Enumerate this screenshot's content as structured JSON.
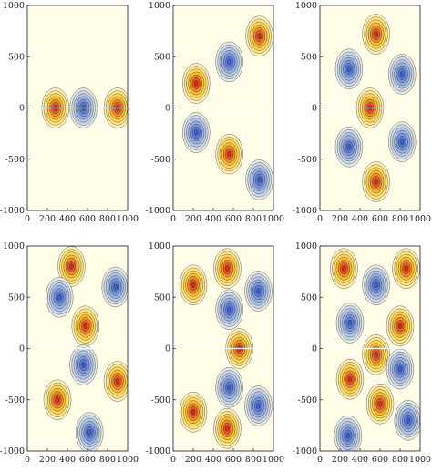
{
  "chart_data": [
    {
      "type": "contour",
      "xlim": [
        0,
        1000
      ],
      "ylim": [
        -1000,
        1000
      ],
      "x_ticks": [
        "0",
        "200",
        "400",
        "600",
        "800",
        "1000"
      ],
      "y_ticks": [
        "1000",
        "500",
        "0",
        "-500",
        "-1000"
      ],
      "colormap": [
        "#3a5ec8",
        "#a9bde6",
        "#fffde8",
        "#ffd23c",
        "#d42a1a"
      ],
      "extrema": [
        {
          "x": 280,
          "y": 0,
          "sign": 1
        },
        {
          "x": 560,
          "y": 0,
          "sign": -1
        },
        {
          "x": 900,
          "y": 0,
          "sign": 1
        }
      ]
    },
    {
      "type": "contour",
      "xlim": [
        0,
        1000
      ],
      "ylim": [
        -1000,
        1000
      ],
      "x_ticks": [
        "0",
        "200",
        "400",
        "600",
        "800",
        "1000"
      ],
      "y_ticks": [
        "1000",
        "500",
        "0",
        "-500",
        "-1000"
      ],
      "colormap": [
        "#3a5ec8",
        "#a9bde6",
        "#fffde8",
        "#ffd23c",
        "#d42a1a"
      ],
      "extrema": [
        {
          "x": 230,
          "y": 240,
          "sign": 1
        },
        {
          "x": 560,
          "y": 450,
          "sign": -1
        },
        {
          "x": 860,
          "y": 700,
          "sign": 1
        },
        {
          "x": 230,
          "y": -240,
          "sign": -1
        },
        {
          "x": 560,
          "y": -450,
          "sign": 1
        },
        {
          "x": 860,
          "y": -700,
          "sign": -1
        }
      ]
    },
    {
      "type": "contour",
      "xlim": [
        0,
        1000
      ],
      "ylim": [
        -1000,
        1000
      ],
      "x_ticks": [
        "0",
        "200",
        "400",
        "600",
        "800",
        "1000"
      ],
      "y_ticks": [
        "1000",
        "500",
        "0",
        "-500",
        "-1000"
      ],
      "colormap": [
        "#3a5ec8",
        "#a9bde6",
        "#fffde8",
        "#ffd23c",
        "#d42a1a"
      ],
      "extrema": [
        {
          "x": 290,
          "y": 380,
          "sign": -1
        },
        {
          "x": 560,
          "y": 720,
          "sign": 1
        },
        {
          "x": 500,
          "y": 0,
          "sign": 1
        },
        {
          "x": 820,
          "y": 330,
          "sign": -1
        },
        {
          "x": 290,
          "y": -380,
          "sign": -1
        },
        {
          "x": 560,
          "y": -720,
          "sign": 1
        },
        {
          "x": 820,
          "y": -330,
          "sign": -1
        }
      ]
    },
    {
      "type": "contour",
      "xlim": [
        0,
        1000
      ],
      "ylim": [
        -1000,
        1000
      ],
      "x_ticks": [
        "0",
        "200",
        "400",
        "600",
        "800",
        "1000"
      ],
      "y_ticks": [
        "1000",
        "500",
        "0",
        "-500",
        "-1000"
      ],
      "colormap": [
        "#3a5ec8",
        "#a9bde6",
        "#fffde8",
        "#ffd23c",
        "#d42a1a"
      ],
      "extrema": [
        {
          "x": 440,
          "y": 800,
          "sign": 1
        },
        {
          "x": 320,
          "y": 500,
          "sign": -1
        },
        {
          "x": 580,
          "y": 220,
          "sign": 1
        },
        {
          "x": 880,
          "y": 600,
          "sign": -1
        },
        {
          "x": 560,
          "y": -160,
          "sign": -1
        },
        {
          "x": 300,
          "y": -500,
          "sign": 1
        },
        {
          "x": 900,
          "y": -320,
          "sign": 1
        },
        {
          "x": 620,
          "y": -820,
          "sign": -1
        }
      ]
    },
    {
      "type": "contour",
      "xlim": [
        0,
        1000
      ],
      "ylim": [
        -1000,
        1000
      ],
      "x_ticks": [
        "0",
        "200",
        "400",
        "600",
        "800",
        "1000"
      ],
      "y_ticks": [
        "1000",
        "500",
        "0",
        "-500",
        "-1000"
      ],
      "colormap": [
        "#3a5ec8",
        "#a9bde6",
        "#fffde8",
        "#ffd23c",
        "#d42a1a"
      ],
      "extrema": [
        {
          "x": 200,
          "y": 620,
          "sign": 1
        },
        {
          "x": 540,
          "y": 780,
          "sign": 1
        },
        {
          "x": 560,
          "y": 380,
          "sign": -1
        },
        {
          "x": 850,
          "y": 560,
          "sign": -1
        },
        {
          "x": 660,
          "y": 0,
          "sign": 1
        },
        {
          "x": 560,
          "y": -380,
          "sign": -1
        },
        {
          "x": 200,
          "y": -620,
          "sign": 1
        },
        {
          "x": 540,
          "y": -780,
          "sign": 1
        },
        {
          "x": 850,
          "y": -560,
          "sign": -1
        }
      ]
    },
    {
      "type": "contour",
      "xlim": [
        0,
        1000
      ],
      "ylim": [
        -1000,
        1000
      ],
      "x_ticks": [
        "0",
        "200",
        "400",
        "600",
        "800",
        "1000"
      ],
      "y_ticks": [
        "1000",
        "500",
        "0",
        "-500",
        "-1000"
      ],
      "colormap": [
        "#3a5ec8",
        "#a9bde6",
        "#fffde8",
        "#ffd23c",
        "#d42a1a"
      ],
      "extrema": [
        {
          "x": 240,
          "y": 780,
          "sign": 1
        },
        {
          "x": 560,
          "y": 620,
          "sign": -1
        },
        {
          "x": 860,
          "y": 780,
          "sign": 1
        },
        {
          "x": 300,
          "y": 250,
          "sign": -1
        },
        {
          "x": 800,
          "y": 220,
          "sign": 1
        },
        {
          "x": 560,
          "y": -60,
          "sign": 1
        },
        {
          "x": 800,
          "y": -200,
          "sign": -1
        },
        {
          "x": 300,
          "y": -300,
          "sign": 1
        },
        {
          "x": 600,
          "y": -540,
          "sign": 1
        },
        {
          "x": 280,
          "y": -850,
          "sign": -1
        },
        {
          "x": 880,
          "y": -700,
          "sign": -1
        }
      ]
    }
  ]
}
